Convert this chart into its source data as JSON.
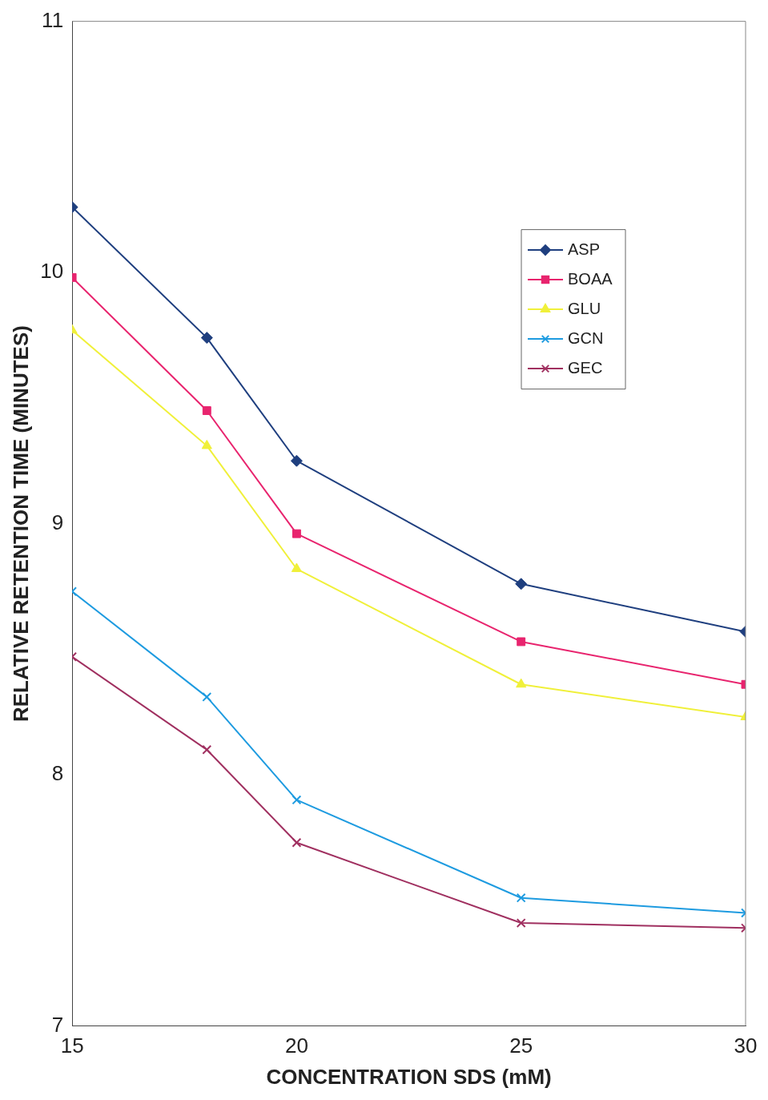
{
  "chart_data": {
    "type": "line",
    "xlabel": "CONCENTRATION SDS (mM)",
    "ylabel": "RELATIVE RETENTION TIME (MINUTES)",
    "x": [
      15,
      18,
      20,
      25,
      30
    ],
    "series": [
      {
        "name": "ASP",
        "color": "#1f3f7f",
        "marker": "diamond",
        "values": [
          10.26,
          9.74,
          9.25,
          8.76,
          8.57
        ]
      },
      {
        "name": "BOAA",
        "color": "#e8246e",
        "marker": "square",
        "values": [
          9.98,
          9.45,
          8.96,
          8.53,
          8.36
        ]
      },
      {
        "name": "GLU",
        "color": "#f0f03a",
        "marker": "triangle",
        "values": [
          9.77,
          9.31,
          8.82,
          8.36,
          8.23
        ]
      },
      {
        "name": "GCN",
        "color": "#1e9be0",
        "marker": "cross",
        "values": [
          8.73,
          8.31,
          7.9,
          7.51,
          7.45
        ]
      },
      {
        "name": "GEC",
        "color": "#a03060",
        "marker": "cross",
        "values": [
          8.47,
          8.1,
          7.73,
          7.41,
          7.39
        ]
      }
    ],
    "xlim": [
      15,
      30
    ],
    "xticks": [
      15,
      20,
      25,
      30
    ],
    "ylim": [
      7,
      11
    ],
    "yticks": [
      7,
      8,
      9,
      10,
      11
    ],
    "grid": false,
    "legend": "top right",
    "line_style": "solid"
  }
}
